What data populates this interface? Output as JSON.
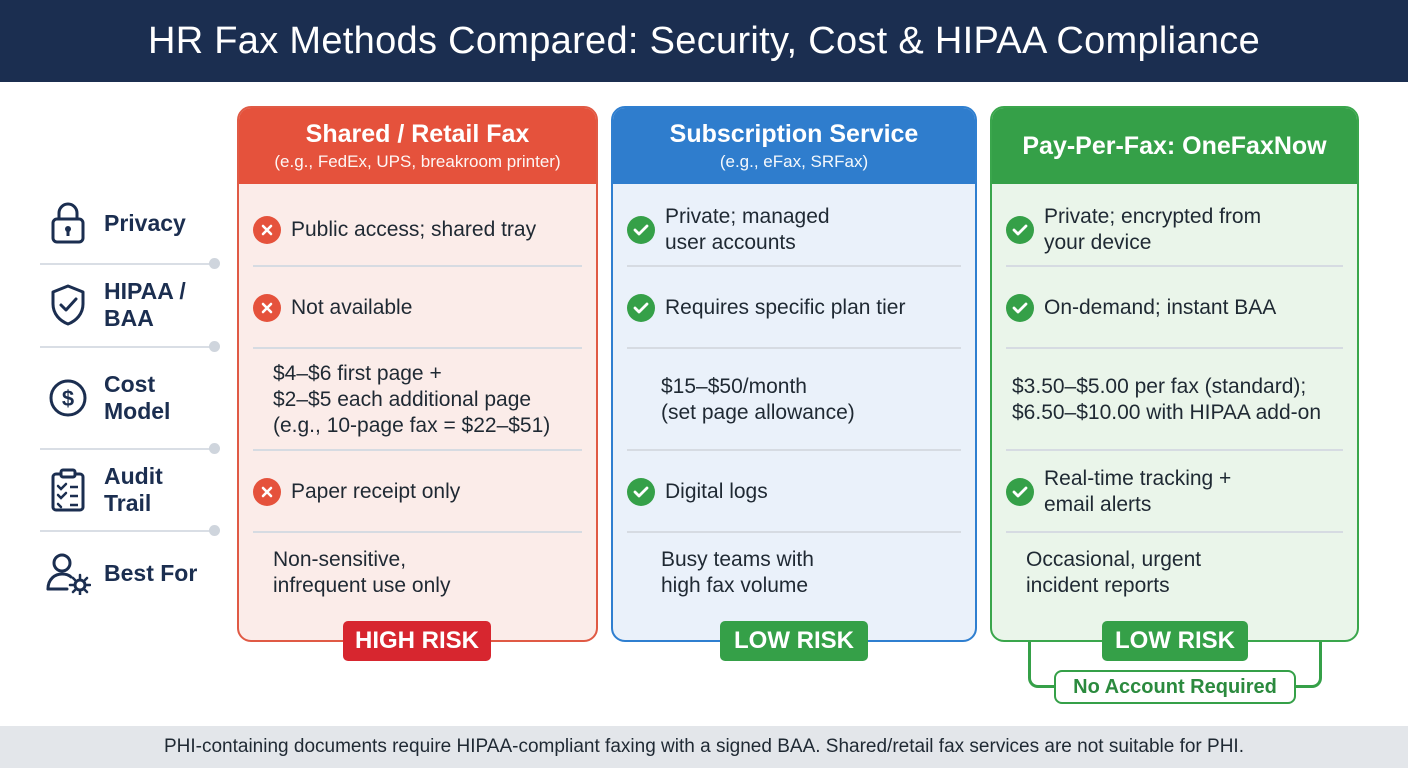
{
  "header": {
    "title": "HR Fax Methods Compared: Security, Cost & HIPAA Compliance"
  },
  "rows": [
    {
      "label": "Privacy",
      "icon": "lock-icon"
    },
    {
      "label": "HIPAA /\nBAA",
      "icon": "shield-check-icon"
    },
    {
      "label": "Cost\nModel",
      "icon": "dollar-icon"
    },
    {
      "label": "Audit\nTrail",
      "icon": "clipboard-checklist-icon"
    },
    {
      "label": "Best For",
      "icon": "user-gear-icon"
    }
  ],
  "columns": [
    {
      "title": "Shared / Retail Fax",
      "subtitle": "(e.g., FedEx, UPS, breakroom printer)",
      "color": "#e5523c",
      "cells": [
        {
          "status": "x",
          "text": "Public access; shared tray"
        },
        {
          "status": "x",
          "text": "Not available"
        },
        {
          "status": "none",
          "text": "$4–$6 first page +\n$2–$5 each additional page\n(e.g., 10-page fax = $22–$51)"
        },
        {
          "status": "x",
          "text": "Paper receipt only"
        },
        {
          "status": "none",
          "text": "Non-sensitive,\ninfrequent use only"
        }
      ],
      "badge": "HIGH RISK",
      "badge_color": "#d7262f"
    },
    {
      "title": "Subscription Service",
      "subtitle": "(e.g., eFax, SRFax)",
      "color": "#2f7dcd",
      "cells": [
        {
          "status": "ok",
          "text": "Private; managed\nuser accounts"
        },
        {
          "status": "ok",
          "text": "Requires specific plan tier"
        },
        {
          "status": "none",
          "text": "$15–$50/month\n(set page allowance)"
        },
        {
          "status": "ok",
          "text": "Digital logs"
        },
        {
          "status": "none",
          "text": "Busy teams with\nhigh fax volume"
        }
      ],
      "badge": "LOW RISK",
      "badge_color": "#35a048"
    },
    {
      "title": "Pay-Per-Fax: OneFaxNow",
      "subtitle": "",
      "color": "#35a048",
      "cells": [
        {
          "status": "ok",
          "text": "Private; encrypted from\nyour device"
        },
        {
          "status": "ok",
          "text": "On-demand; instant BAA"
        },
        {
          "status": "none",
          "text": "$3.50–$5.00 per fax (standard);\n$6.50–$10.00 with HIPAA add-on"
        },
        {
          "status": "ok",
          "text": "Real-time tracking +\nemail alerts"
        },
        {
          "status": "none",
          "text": "Occasional, urgent\nincident reports"
        }
      ],
      "badge": "LOW RISK",
      "badge_color": "#35a048",
      "callout": "No Account Required"
    }
  ],
  "footer": {
    "note": "PHI-containing documents require HIPAA-compliant faxing with a signed BAA. Shared/retail fax services are not suitable for PHI."
  }
}
